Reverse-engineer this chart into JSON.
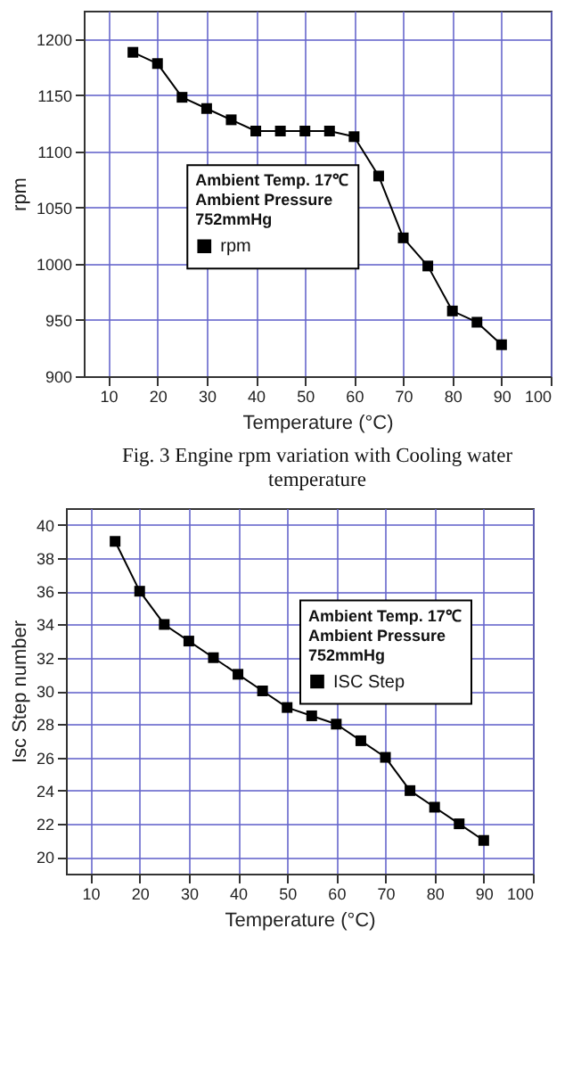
{
  "chart_data": [
    {
      "type": "line",
      "xlabel": "Temperature (°C)",
      "ylabel": "rpm",
      "legend_title": "Ambient Temp. 17℃\nAmbient Pressure\n752mmHg",
      "annotations": [
        "Fig. 3 Engine rpm variation with Cooling water temperature"
      ],
      "x": [
        15,
        20,
        25,
        30,
        35,
        40,
        45,
        50,
        55,
        60,
        65,
        70,
        75,
        80,
        85,
        90
      ],
      "series": [
        {
          "name": "rpm",
          "color": "#000000",
          "values": [
            1188,
            1178,
            1148,
            1138,
            1128,
            1118,
            1118,
            1118,
            1118,
            1113,
            1078,
            1023,
            998,
            958,
            948,
            928
          ]
        }
      ],
      "xlim": [
        5,
        100
      ],
      "xticks": [
        10,
        20,
        30,
        40,
        50,
        60,
        70,
        80,
        90,
        100
      ],
      "ylim": [
        900,
        1225
      ],
      "yticks": [
        900,
        950,
        1000,
        1050,
        1100,
        1150,
        1200
      ],
      "grid": true,
      "legend": "left",
      "marker": "square",
      "line_style": "solid"
    },
    {
      "type": "line",
      "xlabel": "Temperature (°C)",
      "ylabel": "Isc Step number",
      "legend_title": "Ambient Temp. 17℃\nAmbient Pressure\n752mmHg",
      "x": [
        15,
        20,
        25,
        30,
        35,
        40,
        45,
        50,
        55,
        60,
        65,
        70,
        75,
        80,
        85,
        90
      ],
      "series": [
        {
          "name": "ISC Step",
          "color": "#000000",
          "values": [
            39,
            36,
            34,
            33,
            32,
            31,
            30,
            29,
            28.5,
            28,
            27,
            26,
            24,
            23,
            22,
            21
          ]
        }
      ],
      "xlim": [
        5,
        100
      ],
      "xticks": [
        10,
        20,
        30,
        40,
        50,
        60,
        70,
        80,
        90,
        100
      ],
      "ylim": [
        19,
        41
      ],
      "yticks": [
        20,
        22,
        24,
        26,
        28,
        30,
        32,
        34,
        36,
        38,
        40
      ],
      "grid": true,
      "legend": "top right",
      "marker": "square",
      "line_style": "solid"
    }
  ]
}
